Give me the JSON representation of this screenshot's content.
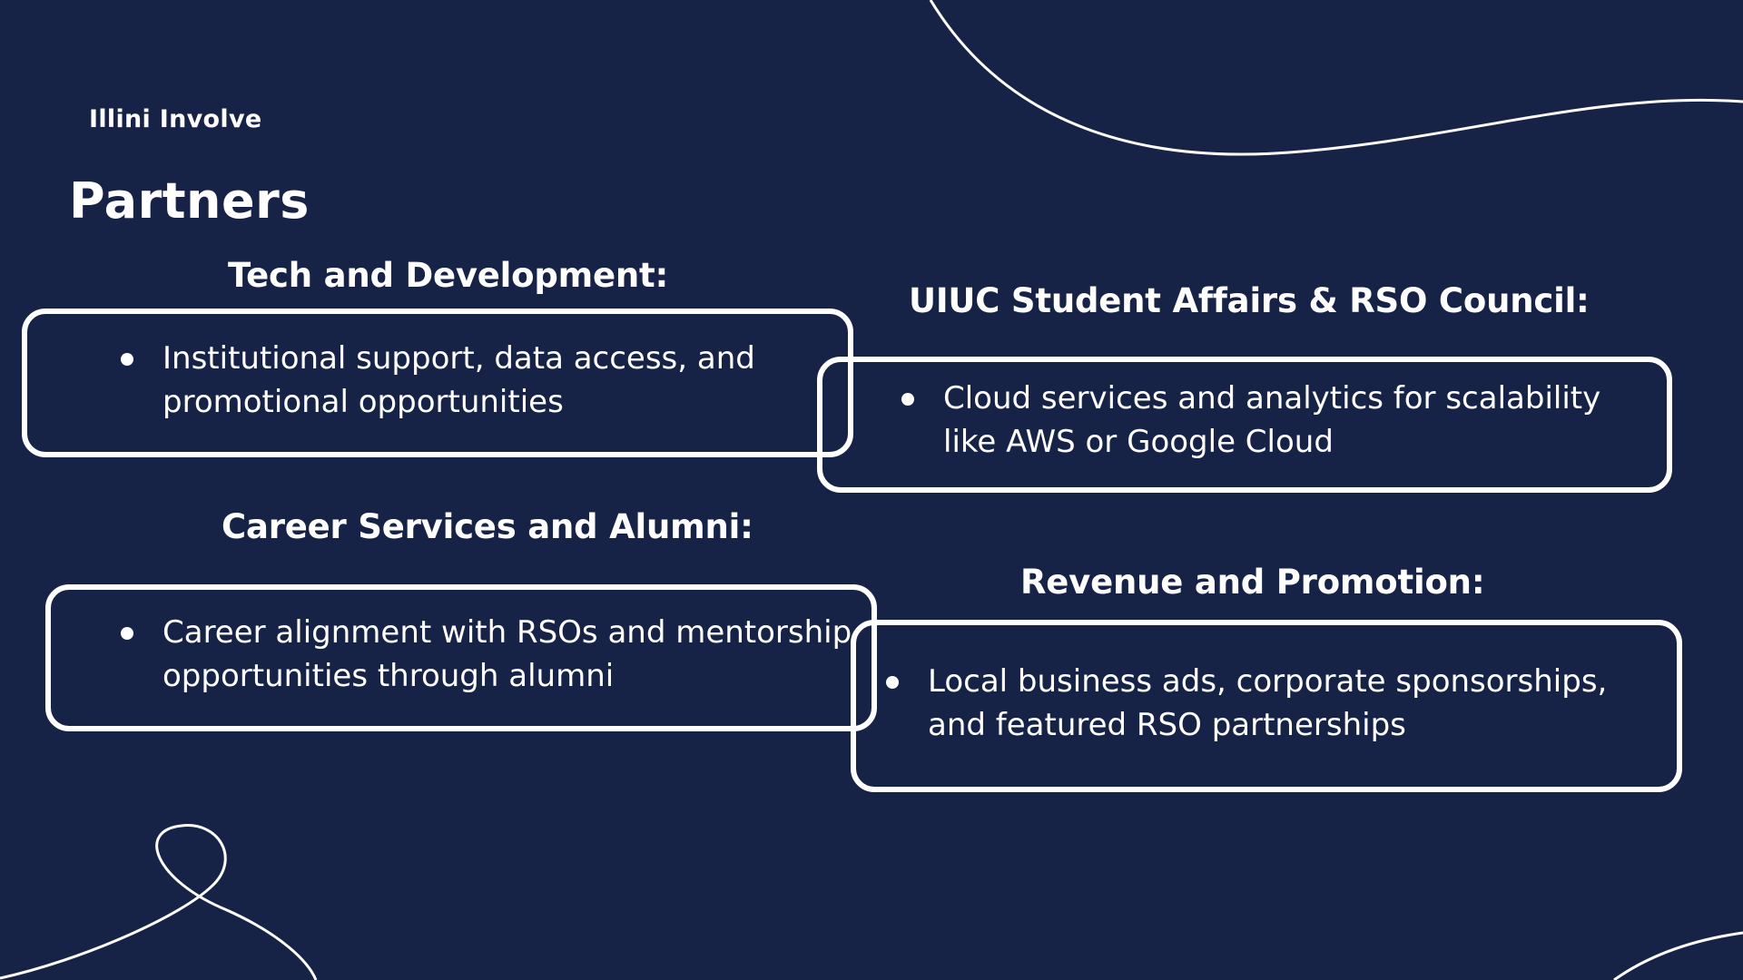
{
  "brand": "Illini Involve",
  "title": "Partners",
  "sections": [
    {
      "heading": "Tech and Development:",
      "bullet": "Institutional support, data access, and promotional opportunities"
    },
    {
      "heading": "UIUC Student Affairs & RSO Council:",
      "bullet": "Cloud services and analytics for scalability like AWS or Google Cloud"
    },
    {
      "heading": "Career Services and Alumni:",
      "bullet": "Career alignment with RSOs and mentorship opportunities through alumni"
    },
    {
      "heading": "Revenue and Promotion:",
      "bullet": "Local business ads, corporate sponsorships, and featured RSO partnerships"
    }
  ],
  "colors": {
    "background": "#172247",
    "foreground": "#ffffff"
  }
}
